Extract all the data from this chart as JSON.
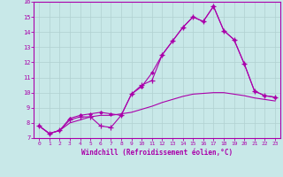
{
  "background_color": "#c8e8e8",
  "grid_color": "#b0d0d0",
  "line_color": "#aa00aa",
  "xlim": [
    -0.5,
    23.5
  ],
  "ylim": [
    7,
    16
  ],
  "xticks": [
    0,
    1,
    2,
    3,
    4,
    5,
    6,
    7,
    8,
    9,
    10,
    11,
    12,
    13,
    14,
    15,
    16,
    17,
    18,
    19,
    20,
    21,
    22,
    23
  ],
  "yticks": [
    7,
    8,
    9,
    10,
    11,
    12,
    13,
    14,
    15,
    16
  ],
  "xlabel": "Windchill (Refroidissement éolien,°C)",
  "line1_x": [
    0,
    1,
    2,
    3,
    4,
    5,
    6,
    7,
    8,
    9,
    10,
    11,
    12,
    13,
    14,
    15,
    16,
    17,
    18,
    19,
    20,
    21,
    22,
    23
  ],
  "line1_y": [
    7.8,
    7.3,
    7.5,
    8.2,
    8.4,
    8.4,
    7.8,
    7.7,
    8.5,
    9.9,
    10.5,
    10.8,
    12.5,
    13.4,
    14.3,
    15.0,
    14.7,
    15.7,
    14.1,
    13.5,
    11.9,
    10.1,
    9.8,
    9.7
  ],
  "line2_x": [
    0,
    1,
    2,
    3,
    4,
    5,
    6,
    7,
    8,
    9,
    10,
    11,
    12,
    13,
    14,
    15,
    16,
    17,
    18,
    19,
    20,
    21,
    22,
    23
  ],
  "line2_y": [
    7.8,
    7.3,
    7.5,
    8.3,
    8.5,
    8.6,
    8.7,
    8.6,
    8.5,
    9.9,
    10.4,
    11.3,
    12.5,
    13.4,
    14.3,
    15.0,
    14.7,
    15.7,
    14.1,
    13.5,
    11.9,
    10.1,
    9.8,
    9.7
  ],
  "line3_x": [
    0,
    1,
    2,
    3,
    4,
    5,
    6,
    7,
    8,
    9,
    10,
    11,
    12,
    13,
    14,
    15,
    16,
    17,
    18,
    19,
    20,
    21,
    22,
    23
  ],
  "line3_y": [
    7.8,
    7.3,
    7.5,
    8.0,
    8.2,
    8.4,
    8.5,
    8.5,
    8.6,
    8.7,
    8.9,
    9.1,
    9.35,
    9.55,
    9.75,
    9.9,
    9.95,
    10.0,
    10.0,
    9.9,
    9.8,
    9.65,
    9.55,
    9.45
  ]
}
